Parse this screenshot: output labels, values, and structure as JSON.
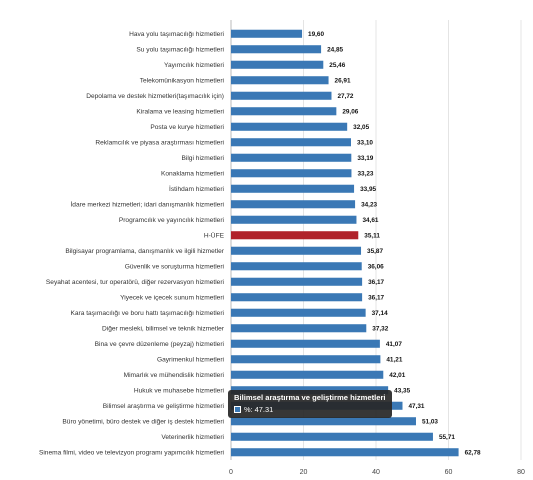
{
  "chart_data": {
    "type": "bar",
    "orientation": "horizontal",
    "categories": [
      "Hava yolu taşımacılığı hizmetleri",
      "Su yolu taşımacılığı hizmetleri",
      "Yayımcılık hizmetleri",
      "Telekomünikasyon hizmetleri",
      "Depolama ve destek hizmetleri(taşımacılık için)",
      "Kiralama ve leasing hizmetleri",
      "Posta ve kurye hizmetleri",
      "Reklamcılık ve piyasa araştırması hizmetleri",
      "Bilgi hizmetleri",
      "Konaklama hizmetleri",
      "İstihdam hizmetleri",
      "İdare merkezi hizmetleri; idari danışmanlık hizmetleri",
      "Programcılık ve yayıncılık hizmetleri",
      "H-ÜFE",
      "Bilgisayar programlama, danışmanlık ve ilgili hizmetler",
      "Güvenlik ve soruşturma hizmetleri",
      "Seyahat acentesi, tur operatörü, diğer rezervasyon hizmetleri",
      "Yiyecek ve içecek sunum hizmetleri",
      "Kara taşımacılığı ve boru hattı taşımacılığı hizmetleri",
      "Diğer mesleki, bilimsel ve teknik hizmetler",
      "Bina ve çevre düzenleme (peyzaj) hizmetleri",
      "Gayrimenkul hizmetleri",
      "Mimarlık ve mühendislik hizmetleri",
      "Hukuk ve muhasebe hizmetleri",
      "Bilimsel araştırma ve geliştirme hizmetleri",
      "Büro yönetimi, büro destek ve diğer iş destek hizmetleri",
      "Veterinerlik hizmetleri",
      "Sinema filmi, video ve televizyon programı yapımcılık hizmetleri"
    ],
    "values": [
      19.6,
      24.85,
      25.46,
      26.91,
      27.72,
      29.06,
      32.05,
      33.1,
      33.19,
      33.23,
      33.95,
      34.23,
      34.61,
      35.11,
      35.87,
      36.06,
      36.17,
      36.17,
      37.14,
      37.32,
      41.07,
      41.21,
      42.01,
      43.35,
      47.31,
      51.03,
      55.71,
      62.78
    ],
    "value_labels": [
      "19,60",
      "24,85",
      "25,46",
      "26,91",
      "27,72",
      "29,06",
      "32,05",
      "33,10",
      "33,19",
      "33,23",
      "33,95",
      "34,23",
      "34,61",
      "35,11",
      "35,87",
      "36,06",
      "36,17",
      "36,17",
      "37,14",
      "37,32",
      "41,07",
      "41,21",
      "42,01",
      "43,35",
      "47,31",
      "51,03",
      "55,71",
      "62,78"
    ],
    "highlight_category": "H-ÜFE",
    "colors": {
      "bar": "#3a78b5",
      "highlight": "#b0222a",
      "grid": "#e4e4e4",
      "axis": "#bbbbbb"
    },
    "xlim": [
      0,
      80
    ],
    "xticks": [
      0,
      20,
      40,
      60,
      80
    ],
    "grid": true,
    "title": "",
    "xlabel": "",
    "ylabel": ""
  },
  "tooltip": {
    "title": "Bilimsel araştırma ve geliştirme hizmetleri",
    "label": "%: 47.31"
  }
}
